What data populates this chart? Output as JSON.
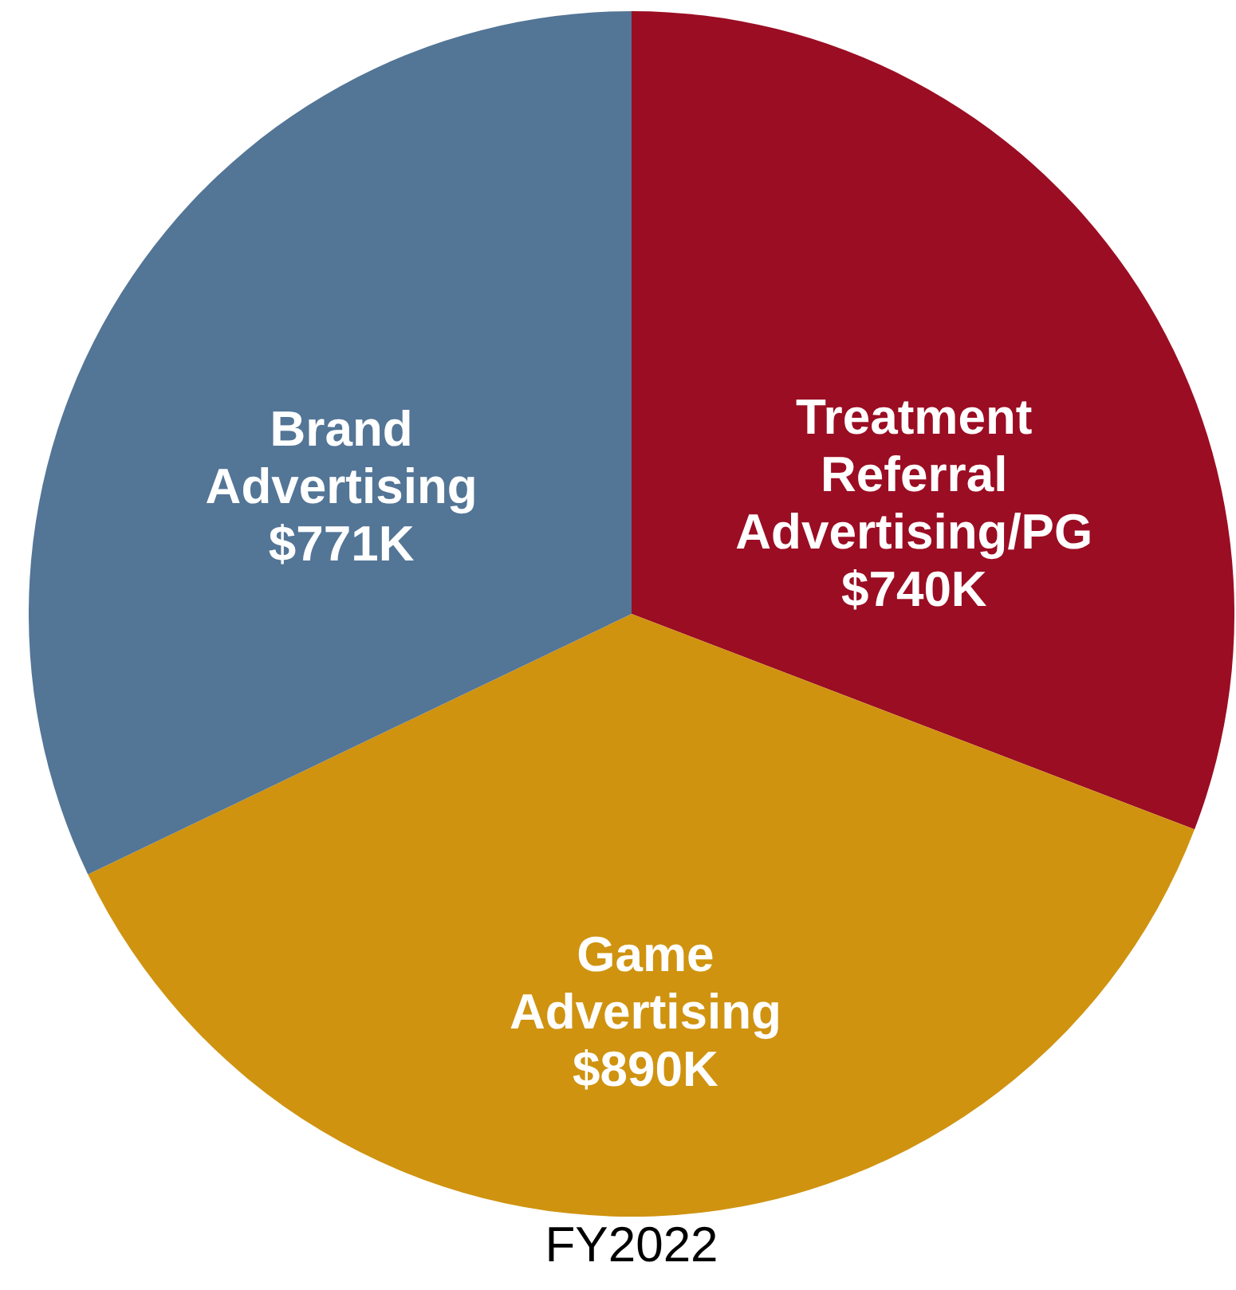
{
  "chart_data": {
    "type": "pie",
    "title": "FY2022",
    "categories": [
      "Treatment Referral Advertising/PG",
      "Game Advertising",
      "Brand Advertising"
    ],
    "values": [
      740,
      890,
      771
    ],
    "value_labels": [
      "$740K",
      "$890K",
      "$771K"
    ],
    "colors": [
      "#9b0d23",
      "#cf9310",
      "#537596"
    ],
    "legend": false
  }
}
